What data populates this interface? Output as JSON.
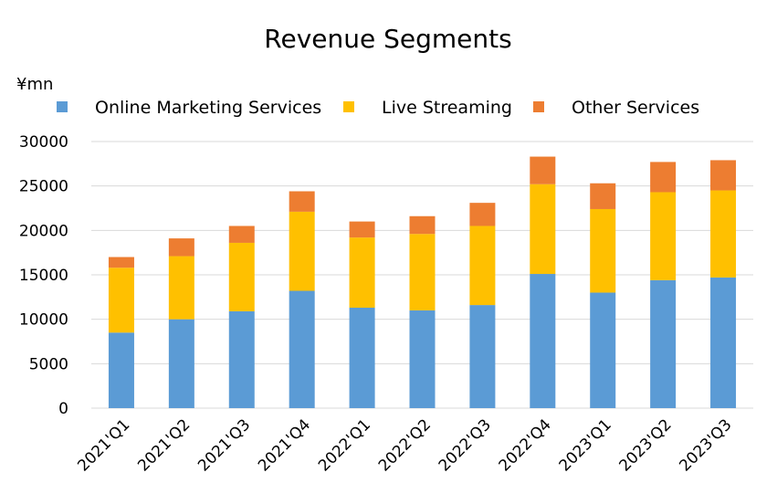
{
  "chart_data": {
    "type": "bar",
    "stacked": true,
    "title": "Revenue Segments",
    "ylabel": "¥mn",
    "xlabel": "",
    "ylim": [
      0,
      30000
    ],
    "yticks": [
      0,
      5000,
      10000,
      15000,
      20000,
      25000,
      30000
    ],
    "grid": true,
    "legend_position": "top",
    "categories": [
      "2021'Q1",
      "2021'Q2",
      "2021'Q3",
      "2021'Q4",
      "2022'Q1",
      "2022'Q2",
      "2022'Q3",
      "2022'Q4",
      "2023'Q1",
      "2023'Q2",
      "2023'Q3"
    ],
    "series": [
      {
        "name": "Online Marketing Services",
        "color": "#5B9BD5",
        "values": [
          8500,
          10000,
          10900,
          13200,
          11300,
          11000,
          11600,
          15100,
          13000,
          14400,
          14700
        ]
      },
      {
        "name": "Live Streaming",
        "color": "#FFC000",
        "values": [
          7300,
          7100,
          7700,
          8900,
          7900,
          8600,
          8900,
          10100,
          9400,
          9900,
          9800
        ]
      },
      {
        "name": "Other Services",
        "color": "#ED7D31",
        "values": [
          1200,
          2000,
          1900,
          2300,
          1800,
          2000,
          2600,
          3100,
          2900,
          3400,
          3400
        ]
      }
    ]
  }
}
